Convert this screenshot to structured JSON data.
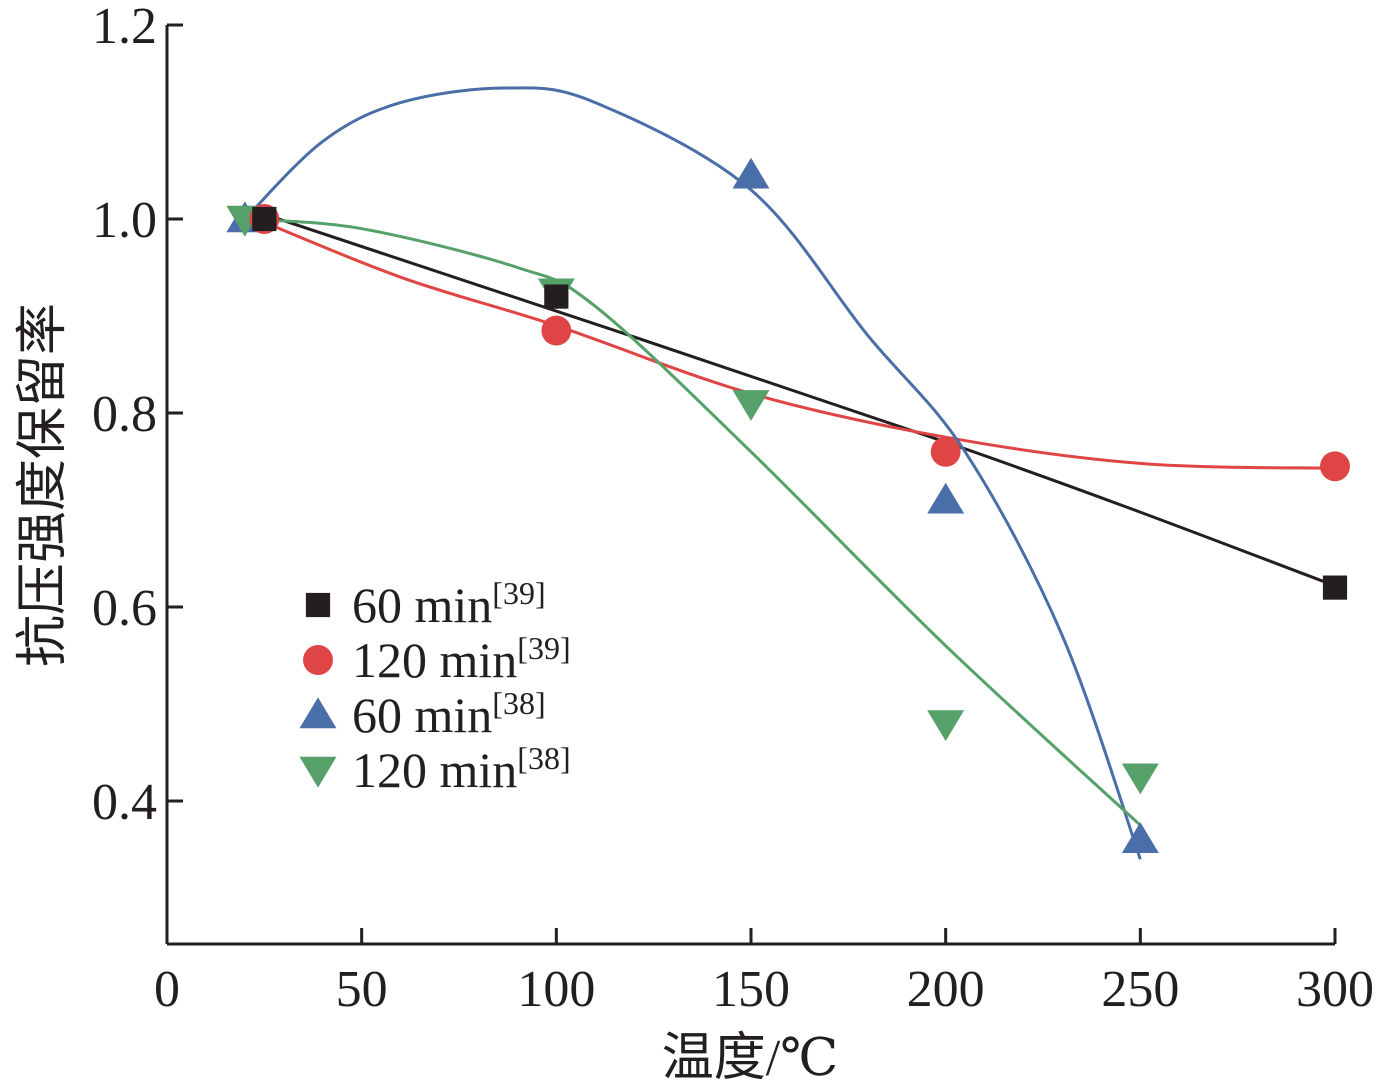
{
  "chart_data": {
    "type": "scatter",
    "xlabel": "温度/℃",
    "ylabel": "抗压强度保留率",
    "xlim": [
      0,
      300
    ],
    "ylim": [
      0.25,
      1.2
    ],
    "x_ticks": [
      0,
      50,
      100,
      150,
      200,
      250,
      300
    ],
    "y_ticks": [
      0.4,
      0.6,
      0.8,
      1.0,
      1.2
    ],
    "x_tick_labels": [
      "0",
      "50",
      "100",
      "150",
      "200",
      "250",
      "300"
    ],
    "y_tick_labels": [
      "0.4",
      "0.6",
      "0.8",
      "1.0",
      "1.2"
    ],
    "grid": false,
    "legend_position": "left-center",
    "series": [
      {
        "name": "60 min",
        "ref": "[39]",
        "marker": "square",
        "color": "#231f20",
        "x": [
          25,
          100,
          300
        ],
        "y": [
          1.0,
          0.92,
          0.62
        ],
        "fit_x": [
          25,
          200,
          300
        ],
        "fit_y": [
          1.005,
          0.77,
          0.622
        ]
      },
      {
        "name": "120 min",
        "ref": "[39]",
        "marker": "circle",
        "color": "#e04545",
        "x": [
          25,
          100,
          200,
          300
        ],
        "y": [
          1.0,
          0.885,
          0.76,
          0.745
        ],
        "fit_x": [
          20,
          60,
          100,
          150,
          200,
          250,
          300
        ],
        "fit_y": [
          1.005,
          0.94,
          0.89,
          0.82,
          0.775,
          0.748,
          0.743
        ]
      },
      {
        "name": "60 min",
        "ref": "[38]",
        "marker": "triangle-up",
        "color": "#4a6ea8",
        "x": [
          20,
          150,
          200,
          250
        ],
        "y": [
          1.0,
          1.045,
          0.71,
          0.36
        ],
        "fit_x": [
          20,
          40,
          60,
          87,
          110,
          150,
          180,
          205,
          230,
          250
        ],
        "fit_y": [
          1.0,
          1.08,
          1.12,
          1.135,
          1.12,
          1.03,
          0.88,
          0.76,
          0.57,
          0.34
        ]
      },
      {
        "name": "120 min",
        "ref": "[38]",
        "marker": "triangle-down",
        "color": "#56a06a",
        "x": [
          20,
          100,
          150,
          200,
          250
        ],
        "y": [
          1.0,
          0.925,
          0.81,
          0.48,
          0.425
        ],
        "fit_x": [
          20,
          50,
          90,
          110,
          150,
          200,
          250
        ],
        "fit_y": [
          1.0,
          0.99,
          0.95,
          0.91,
          0.76,
          0.56,
          0.375
        ]
      }
    ]
  }
}
